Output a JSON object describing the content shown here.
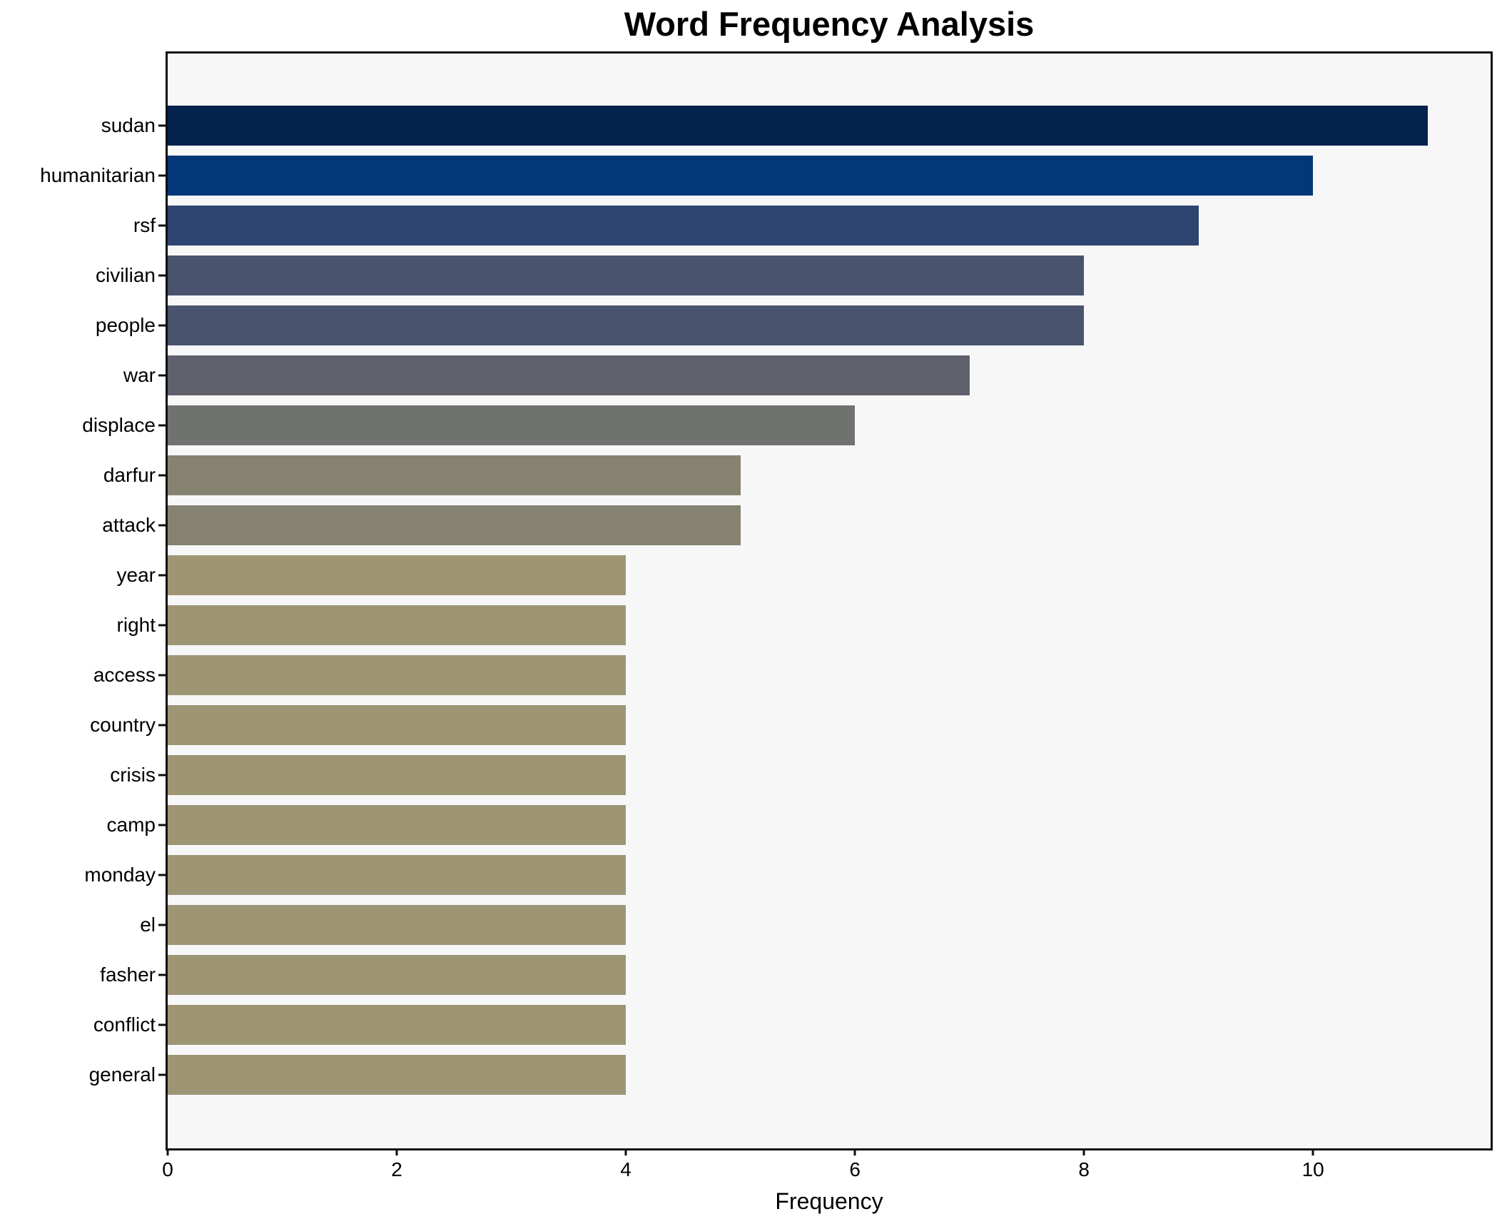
{
  "figure": {
    "background_color": "#ffffff",
    "plot_background_color": "#f7f7f8",
    "spine_color": "#0e0e0e",
    "text_color": "#000000"
  },
  "chart_data": {
    "type": "bar",
    "orientation": "horizontal",
    "title": "Word Frequency Analysis",
    "xlabel": "Frequency",
    "ylabel": "",
    "xlim": [
      0,
      11.55
    ],
    "xticks": [
      0,
      2,
      4,
      6,
      8,
      10
    ],
    "grid": false,
    "legend": false,
    "categories": [
      "sudan",
      "humanitarian",
      "rsf",
      "civilian",
      "people",
      "war",
      "displace",
      "darfur",
      "attack",
      "year",
      "right",
      "access",
      "country",
      "crisis",
      "camp",
      "monday",
      "el",
      "fasher",
      "conflict",
      "general"
    ],
    "values": [
      11,
      10,
      9,
      8,
      8,
      7,
      6,
      5,
      5,
      4,
      4,
      4,
      4,
      4,
      4,
      4,
      4,
      4,
      4,
      4
    ],
    "bar_colors": [
      "#03234e",
      "#043779",
      "#2e4470",
      "#4a536d",
      "#4a536d",
      "#5f626d",
      "#70726f",
      "#858370",
      "#858370",
      "#9e9575",
      "#9e9575",
      "#9e9575",
      "#9e9575",
      "#9e9575",
      "#9e9575",
      "#9e9575",
      "#9e9575",
      "#9e9575",
      "#9e9575",
      "#9e9575"
    ]
  }
}
